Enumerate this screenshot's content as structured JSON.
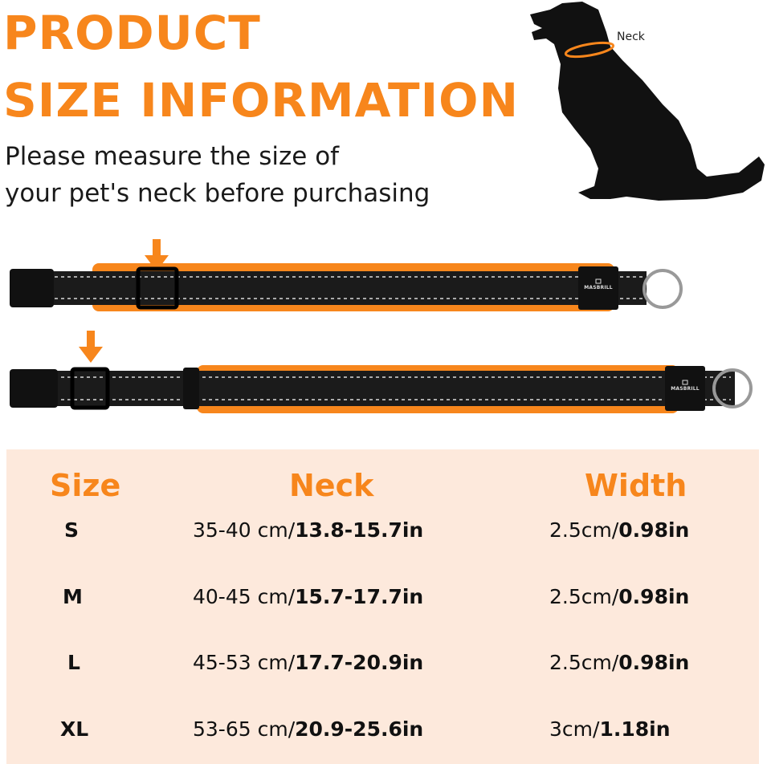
{
  "title_line1": "PRODUCT",
  "title_line2": "SIZE INFORMATION",
  "subtitle_line1": "Please measure the size of",
  "subtitle_line2": "your pet's neck before purchasing",
  "dog_label": "Neck",
  "brand_logo_text": "MASBRILL",
  "colors": {
    "accent": "#f7861c",
    "table_bg": "#fde9dc",
    "collar": "#1b1b1b"
  },
  "table": {
    "headers": {
      "size": "Size",
      "neck": "Neck",
      "width": "Width"
    },
    "rows": [
      {
        "size": "S",
        "neck_cm": "35-40 cm/",
        "neck_in": "13.8-15.7in",
        "width_cm": "2.5cm/",
        "width_in": "0.98in"
      },
      {
        "size": "M",
        "neck_cm": "40-45 cm/",
        "neck_in": "15.7-17.7in",
        "width_cm": "2.5cm/",
        "width_in": "0.98in"
      },
      {
        "size": "L",
        "neck_cm": "45-53 cm/",
        "neck_in": "17.7-20.9in",
        "width_cm": "2.5cm/",
        "width_in": "0.98in"
      },
      {
        "size": "XL",
        "neck_cm": "53-65 cm/",
        "neck_in": "20.9-25.6in",
        "width_cm": "3cm/",
        "width_in": "1.18in"
      }
    ]
  }
}
